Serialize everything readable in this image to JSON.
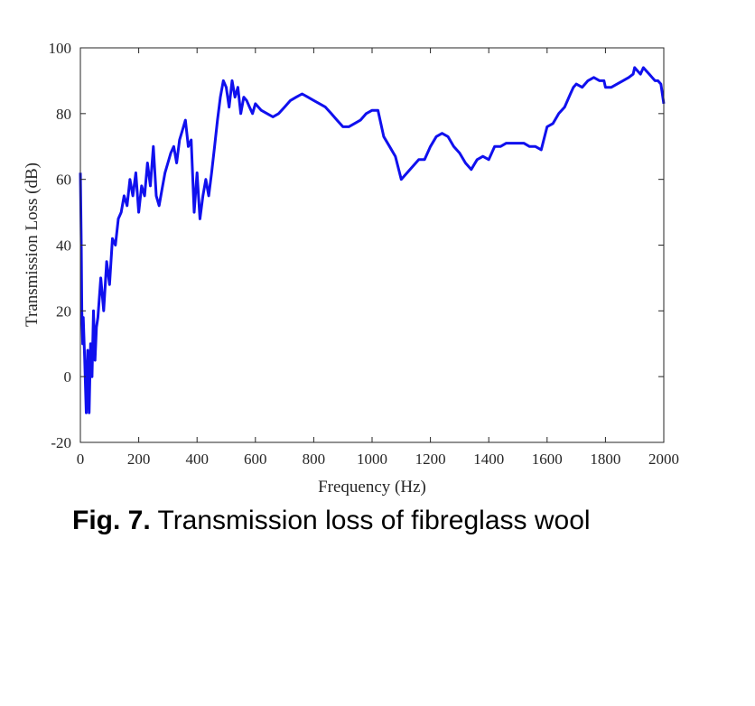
{
  "chart_data": {
    "type": "line",
    "title": "",
    "xlabel": "Frequency (Hz)",
    "ylabel": "Transmission Loss (dB)",
    "xlim": [
      0,
      2000
    ],
    "ylim": [
      -20,
      100
    ],
    "x_ticks": [
      0,
      200,
      400,
      600,
      800,
      1000,
      1200,
      1400,
      1600,
      1800,
      2000
    ],
    "y_ticks": [
      -20,
      0,
      20,
      40,
      60,
      80,
      100
    ],
    "x_tick_labels": [
      "0",
      "200",
      "400",
      "600",
      "800",
      "1000",
      "1200",
      "1400",
      "1600",
      "1800",
      "2000"
    ],
    "y_tick_labels": [
      "-20",
      "0",
      "20",
      "40",
      "60",
      "80",
      "100"
    ],
    "grid": false,
    "legend": "none",
    "series": [
      {
        "color": "#1010ee",
        "x": [
          0,
          3,
          5,
          8,
          10,
          15,
          20,
          25,
          30,
          35,
          40,
          45,
          50,
          55,
          60,
          70,
          80,
          90,
          100,
          110,
          120,
          130,
          140,
          150,
          160,
          170,
          180,
          190,
          200,
          210,
          220,
          230,
          240,
          250,
          260,
          270,
          280,
          290,
          300,
          310,
          320,
          330,
          340,
          350,
          360,
          370,
          380,
          390,
          400,
          410,
          420,
          430,
          440,
          450,
          460,
          470,
          480,
          490,
          500,
          510,
          520,
          530,
          540,
          550,
          560,
          570,
          580,
          590,
          600,
          620,
          640,
          660,
          680,
          700,
          720,
          740,
          760,
          780,
          800,
          820,
          840,
          860,
          880,
          900,
          920,
          940,
          960,
          980,
          1000,
          1020,
          1040,
          1060,
          1080,
          1100,
          1120,
          1140,
          1160,
          1180,
          1200,
          1220,
          1240,
          1260,
          1280,
          1300,
          1320,
          1340,
          1360,
          1380,
          1400,
          1420,
          1440,
          1460,
          1480,
          1500,
          1520,
          1540,
          1560,
          1580,
          1600,
          1620,
          1640,
          1660,
          1680,
          1690,
          1700,
          1720,
          1740,
          1760,
          1780,
          1795,
          1800,
          1820,
          1840,
          1860,
          1880,
          1895,
          1900,
          1910,
          1920,
          1930,
          1940,
          1950,
          1960,
          1970,
          1980,
          1990,
          2000
        ],
        "y": [
          62,
          40,
          20,
          10,
          18,
          5,
          -11,
          8,
          -11,
          10,
          0,
          20,
          5,
          15,
          18,
          30,
          20,
          35,
          28,
          42,
          40,
          48,
          50,
          55,
          52,
          60,
          55,
          62,
          50,
          58,
          55,
          65,
          58,
          70,
          55,
          52,
          57,
          62,
          65,
          68,
          70,
          65,
          72,
          75,
          78,
          70,
          72,
          50,
          62,
          48,
          55,
          60,
          55,
          62,
          70,
          78,
          85,
          90,
          88,
          82,
          90,
          85,
          88,
          80,
          85,
          84,
          82,
          80,
          83,
          81,
          80,
          79,
          80,
          82,
          84,
          85,
          86,
          85,
          84,
          83,
          82,
          80,
          78,
          76,
          76,
          77,
          78,
          80,
          81,
          81,
          73,
          70,
          67,
          60,
          62,
          64,
          66,
          66,
          70,
          73,
          74,
          73,
          70,
          68,
          65,
          63,
          66,
          67,
          66,
          70,
          70,
          71,
          71,
          71,
          71,
          70,
          70,
          69,
          76,
          77,
          80,
          82,
          86,
          88,
          89,
          88,
          90,
          91,
          90,
          90,
          88,
          88,
          89,
          90,
          91,
          92,
          94,
          93,
          92,
          94,
          93,
          92,
          91,
          90,
          90,
          89,
          83
        ]
      }
    ]
  },
  "caption": {
    "label": "Fig. 7.",
    "text": " Transmission loss of fibreglass wool"
  }
}
